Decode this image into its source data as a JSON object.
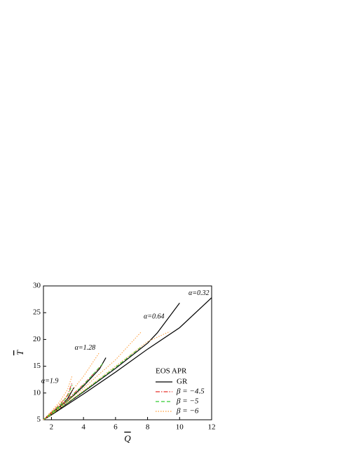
{
  "chart_data": {
    "type": "line",
    "x_label": "Q",
    "y_label": "T",
    "xlim": [
      1.5,
      12
    ],
    "ylim": [
      5,
      30
    ],
    "xticks": [
      2,
      4,
      6,
      8,
      10,
      12
    ],
    "yticks": [
      5,
      10,
      15,
      20,
      25,
      30
    ],
    "legend_title": "EOS APR",
    "legend_position": "lower right",
    "series": [
      {
        "name": "GR",
        "color": "#000000",
        "line_style": "solid",
        "curves": [
          {
            "x": [
              1.5,
              2,
              4,
              6,
              8,
              10,
              12
            ],
            "values": [
              5,
              5.9,
              9.8,
              13.9,
              18.2,
              22.2,
              27.8
            ]
          },
          {
            "x": [
              1.5,
              2,
              4,
              6,
              8,
              8.6,
              10
            ],
            "values": [
              5,
              6.0,
              10.2,
              14.6,
              19.3,
              21.2,
              26.8
            ]
          },
          {
            "x": [
              1.5,
              2,
              3,
              4,
              5,
              5.4
            ],
            "values": [
              5,
              6.2,
              8.5,
              11.3,
              14.5,
              16.6
            ]
          },
          {
            "x": [
              1.5,
              2,
              2.5,
              3,
              3.4
            ],
            "values": [
              5,
              6.3,
              7.4,
              8.9,
              11
            ]
          }
        ]
      },
      {
        "name": "β = −4.5",
        "color": "#e8302a",
        "line_style": "dashdot",
        "curves": [
          {
            "x": [
              1.5,
              2,
              3,
              4,
              5.2
            ],
            "values": [
              5,
              6.3,
              8.8,
              11.6,
              15.4
            ]
          },
          {
            "x": [
              1.5,
              2,
              2.5,
              3,
              3.3
            ],
            "values": [
              5,
              6.4,
              7.8,
              9.6,
              12
            ]
          }
        ]
      },
      {
        "name": "β = −5",
        "color": "#33cc33",
        "line_style": "dashed",
        "curves": [
          {
            "x": [
              1.5,
              2,
              4,
              6,
              7.6
            ],
            "values": [
              5,
              6.0,
              10.3,
              14.8,
              18.6
            ]
          },
          {
            "x": [
              1.5,
              2,
              3,
              4,
              5.2
            ],
            "values": [
              5,
              6.2,
              8.6,
              11.5,
              15.5
            ]
          },
          {
            "x": [
              1.5,
              2,
              2.5,
              3,
              3.3
            ],
            "values": [
              5,
              6.3,
              7.6,
              9.4,
              11.5
            ]
          }
        ]
      },
      {
        "name": "β = −6",
        "color": "#ff9a33",
        "line_style": "dotted",
        "curves": [
          {
            "x": [
              1.5,
              2,
              4,
              6,
              8,
              9.4
            ],
            "values": [
              5,
              6.0,
              10.4,
              15.0,
              19.6,
              21.5
            ]
          },
          {
            "x": [
              1.5,
              2,
              4,
              6,
              7.6
            ],
            "values": [
              5,
              6.1,
              10.9,
              16.2,
              21.4
            ]
          },
          {
            "x": [
              1.5,
              2,
              3,
              4,
              5.0
            ],
            "values": [
              5,
              6.4,
              9.4,
              13.1,
              17.6
            ]
          },
          {
            "x": [
              1.5,
              2,
              2.5,
              3,
              3.3
            ],
            "values": [
              5,
              6.6,
              8.3,
              10.6,
              13.3
            ]
          }
        ]
      }
    ],
    "annotations": [
      {
        "text": "α=0.32",
        "x": 11.2,
        "y": 28.6
      },
      {
        "text": "α=0.64",
        "x": 8.4,
        "y": 24.2
      },
      {
        "text": "α=1.28",
        "x": 4.1,
        "y": 18.4
      },
      {
        "text": "α=1.9",
        "x": 1.9,
        "y": 12.2
      }
    ]
  }
}
